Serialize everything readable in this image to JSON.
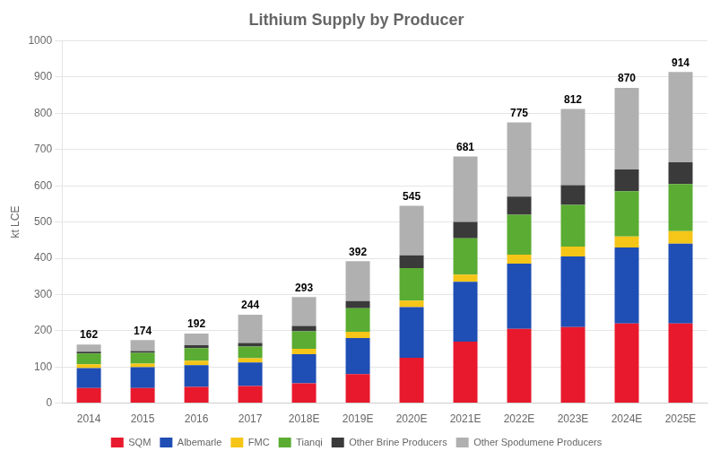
{
  "chart_data": {
    "type": "bar",
    "title": "Lithium Supply by Producer",
    "ylabel": "kt LCE",
    "categories": [
      "2014",
      "2015",
      "2016",
      "2017",
      "2018E",
      "2019E",
      "2020E",
      "2021E",
      "2022E",
      "2023E",
      "2024E",
      "2025E"
    ],
    "series": [
      {
        "name": "SQM",
        "color": "#e8192c",
        "values": [
          42,
          42,
          45,
          47,
          55,
          80,
          125,
          170,
          205,
          210,
          220,
          220
        ]
      },
      {
        "name": "Albemarle",
        "color": "#1f4eb4",
        "values": [
          55,
          57,
          60,
          65,
          80,
          100,
          140,
          165,
          180,
          195,
          210,
          220
        ]
      },
      {
        "name": "FMC",
        "color": "#f5c518",
        "values": [
          10,
          10,
          12,
          12,
          15,
          17,
          18,
          20,
          25,
          27,
          30,
          35
        ]
      },
      {
        "name": "Tianqi",
        "color": "#5aac32",
        "values": [
          30,
          30,
          35,
          32,
          48,
          65,
          90,
          100,
          110,
          115,
          125,
          130
        ]
      },
      {
        "name": "Other Brine Producers",
        "color": "#3a3a3a",
        "values": [
          5,
          5,
          8,
          10,
          15,
          20,
          35,
          45,
          50,
          55,
          60,
          60
        ]
      },
      {
        "name": "Other Spodumene Producers",
        "color": "#b0b0b0",
        "values": [
          20,
          30,
          32,
          78,
          80,
          110,
          137,
          181,
          205,
          210,
          225,
          249
        ]
      }
    ],
    "totals": [
      162,
      174,
      192,
      244,
      293,
      392,
      545,
      681,
      775,
      812,
      870,
      914
    ],
    "stacked": true,
    "ylim": [
      0,
      1000
    ],
    "yticks": [
      0,
      100,
      200,
      300,
      400,
      500,
      600,
      700,
      800,
      900,
      1000
    ],
    "grid": true,
    "legend": "bottom"
  }
}
